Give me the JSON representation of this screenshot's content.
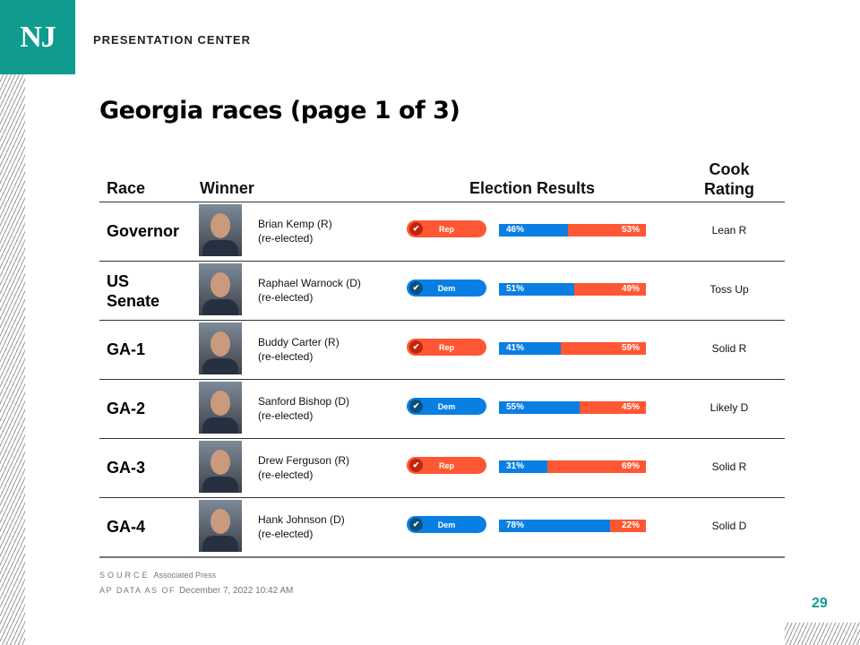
{
  "header": {
    "logo": "NJ",
    "brand": "PRESENTATION CENTER"
  },
  "title": "Georgia races (page 1 of 3)",
  "columns": {
    "race": "Race",
    "winner": "Winner",
    "results": "Election Results",
    "rating_line1": "Cook",
    "rating_line2": "Rating"
  },
  "colors": {
    "dem": "#0a7fe3",
    "rep": "#ff5733",
    "accent": "#0f9b8e"
  },
  "rows": [
    {
      "race": "Governor",
      "winner": "Brian Kemp (R)",
      "status": "(re-elected)",
      "party": "Rep",
      "dem_pct": "46%",
      "rep_pct": "53%",
      "dem": 46,
      "rep": 53,
      "rating": "Lean R"
    },
    {
      "race": "US Senate",
      "winner": "Raphael Warnock (D)",
      "status": "(re-elected)",
      "party": "Dem",
      "dem_pct": "51%",
      "rep_pct": "49%",
      "dem": 51,
      "rep": 49,
      "rating": "Toss Up"
    },
    {
      "race": "GA-1",
      "winner": "Buddy Carter (R)",
      "status": "(re-elected)",
      "party": "Rep",
      "dem_pct": "41%",
      "rep_pct": "59%",
      "dem": 41,
      "rep": 59,
      "rating": "Solid R"
    },
    {
      "race": "GA-2",
      "winner": "Sanford Bishop (D)",
      "status": "(re-elected)",
      "party": "Dem",
      "dem_pct": "55%",
      "rep_pct": "45%",
      "dem": 55,
      "rep": 45,
      "rating": "Likely D"
    },
    {
      "race": "GA-3",
      "winner": "Drew Ferguson (R)",
      "status": "(re-elected)",
      "party": "Rep",
      "dem_pct": "31%",
      "rep_pct": "69%",
      "dem": 31,
      "rep": 69,
      "rating": "Solid R"
    },
    {
      "race": "GA-4",
      "winner": "Hank Johnson (D)",
      "status": "(re-elected)",
      "party": "Dem",
      "dem_pct": "78%",
      "rep_pct": "22%",
      "dem": 78,
      "rep": 22,
      "rating": "Solid D"
    }
  ],
  "footer": {
    "source_label": "SOURCE",
    "source": "Associated Press",
    "asof_label": "AP DATA AS OF",
    "asof": "December 7, 2022 10:42 AM"
  },
  "page_number": "29"
}
